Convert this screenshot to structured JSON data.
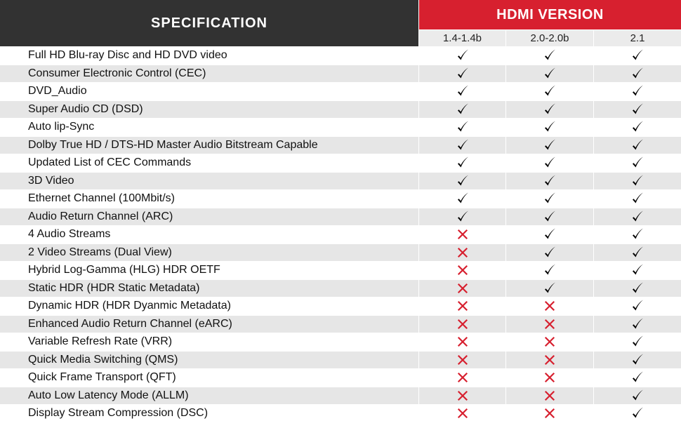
{
  "header": {
    "spec_title": "SPECIFICATION",
    "version_title": "HDMI VERSION",
    "versions": [
      "1.4-1.4b",
      "2.0-2.0b",
      "2.1"
    ]
  },
  "colors": {
    "accent": "#d7202f",
    "header_dark": "#323232",
    "cross": "#d7202f",
    "check": "#000000"
  },
  "rows": [
    {
      "label": "Full HD Blu-ray Disc and HD DVD video",
      "support": [
        "check",
        "check",
        "check"
      ]
    },
    {
      "label": "Consumer Electronic Control (CEC)",
      "support": [
        "check",
        "check",
        "check"
      ]
    },
    {
      "label": "DVD_Audio",
      "support": [
        "check",
        "check",
        "check"
      ]
    },
    {
      "label": "Super Audio CD (DSD)",
      "support": [
        "check",
        "check",
        "check"
      ]
    },
    {
      "label": "Auto lip-Sync",
      "support": [
        "check",
        "check",
        "check"
      ]
    },
    {
      "label": "Dolby True HD / DTS-HD Master Audio Bitstream Capable",
      "support": [
        "check",
        "check",
        "check"
      ]
    },
    {
      "label": "Updated List of CEC Commands",
      "support": [
        "check",
        "check",
        "check"
      ]
    },
    {
      "label": "3D Video",
      "support": [
        "check",
        "check",
        "check"
      ]
    },
    {
      "label": "Ethernet Channel (100Mbit/s)",
      "support": [
        "check",
        "check",
        "check"
      ]
    },
    {
      "label": "Audio Return Channel (ARC)",
      "support": [
        "check",
        "check",
        "check"
      ]
    },
    {
      "label": "4 Audio Streams",
      "support": [
        "cross",
        "check",
        "check"
      ]
    },
    {
      "label": "2 Video Streams (Dual View)",
      "support": [
        "cross",
        "check",
        "check"
      ]
    },
    {
      "label": "Hybrid Log-Gamma (HLG) HDR OETF",
      "support": [
        "cross",
        "check",
        "check"
      ]
    },
    {
      "label": "Static HDR (HDR Static Metadata)",
      "support": [
        "cross",
        "check",
        "check"
      ]
    },
    {
      "label": "Dynamic HDR (HDR Dyanmic Metadata)",
      "support": [
        "cross",
        "cross",
        "check"
      ]
    },
    {
      "label": "Enhanced Audio Return Channel (eARC)",
      "support": [
        "cross",
        "cross",
        "check"
      ]
    },
    {
      "label": "Variable Refresh Rate (VRR)",
      "support": [
        "cross",
        "cross",
        "check"
      ]
    },
    {
      "label": "Quick Media Switching (QMS)",
      "support": [
        "cross",
        "cross",
        "check"
      ]
    },
    {
      "label": "Quick Frame Transport (QFT)",
      "support": [
        "cross",
        "cross",
        "check"
      ]
    },
    {
      "label": "Auto Low Latency Mode (ALLM)",
      "support": [
        "cross",
        "cross",
        "check"
      ]
    },
    {
      "label": "Display Stream Compression (DSC)",
      "support": [
        "cross",
        "cross",
        "check"
      ]
    }
  ]
}
